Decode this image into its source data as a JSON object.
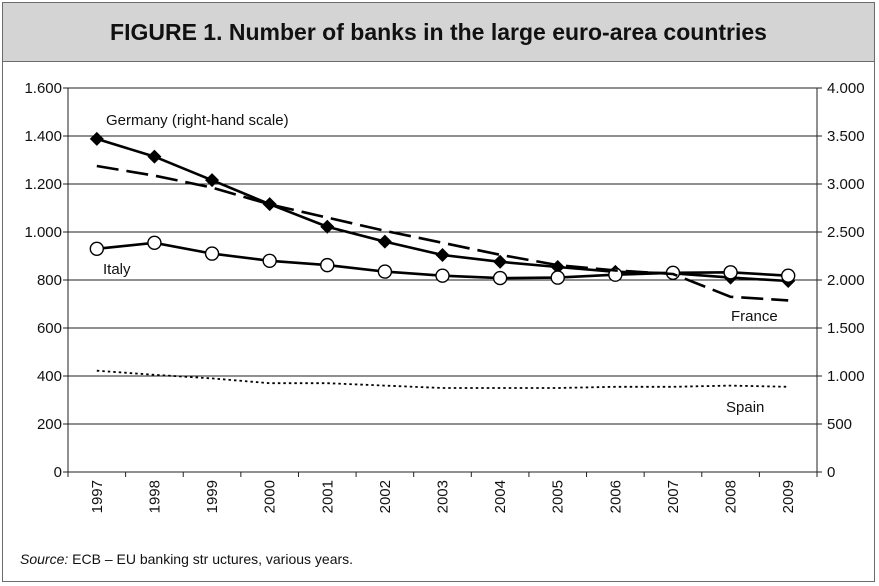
{
  "figure": {
    "title": "FIGURE 1. Number of banks in the large euro-area countries",
    "source_prefix": "Source:",
    "source_text": "ECB – EU banking str uctures, various years."
  },
  "chart_data": {
    "type": "line",
    "title": "FIGURE 1. Number of banks in the large euro-area countries",
    "categories": [
      "1997",
      "1998",
      "1999",
      "2000",
      "2001",
      "2002",
      "2003",
      "2004",
      "2005",
      "2006",
      "2007",
      "2008",
      "2009"
    ],
    "left_axis": {
      "range": [
        0,
        1600
      ],
      "ticks": [
        0,
        200,
        400,
        600,
        800,
        1000,
        1200,
        1400,
        1600
      ],
      "tick_labels": [
        "0",
        "200",
        "400",
        "600",
        "800",
        "1.000",
        "1.200",
        "1.400",
        "1.600"
      ]
    },
    "right_axis": {
      "range": [
        0,
        4000
      ],
      "ticks": [
        0,
        500,
        1000,
        1500,
        2000,
        2500,
        3000,
        3500,
        4000
      ],
      "tick_labels": [
        "0",
        "500",
        "1.000",
        "1.500",
        "2.000",
        "2.500",
        "3.000",
        "3.500",
        "4.000"
      ]
    },
    "grid": "horizontal",
    "series": [
      {
        "name": "Germany (right-hand scale)",
        "axis": "right",
        "style": "solid-diamond",
        "values": [
          3470,
          3285,
          3040,
          2790,
          2555,
          2400,
          2260,
          2190,
          2135,
          2085,
          2070,
          2025,
          1990
        ]
      },
      {
        "name": "Italy",
        "axis": "left",
        "style": "solid-circle",
        "values": [
          930,
          955,
          910,
          880,
          862,
          835,
          818,
          808,
          810,
          822,
          830,
          832,
          818
        ]
      },
      {
        "name": "France",
        "axis": "left",
        "style": "dashed",
        "values": [
          1275,
          1235,
          1185,
          1115,
          1060,
          1005,
          955,
          905,
          862,
          840,
          825,
          730,
          715
        ]
      },
      {
        "name": "Spain",
        "axis": "left",
        "style": "dotted",
        "values": [
          422,
          405,
          390,
          370,
          370,
          360,
          350,
          350,
          350,
          355,
          355,
          360,
          355
        ]
      }
    ],
    "annotations": [
      "Germany (right-hand scale)",
      "Italy",
      "France",
      "Spain"
    ]
  }
}
